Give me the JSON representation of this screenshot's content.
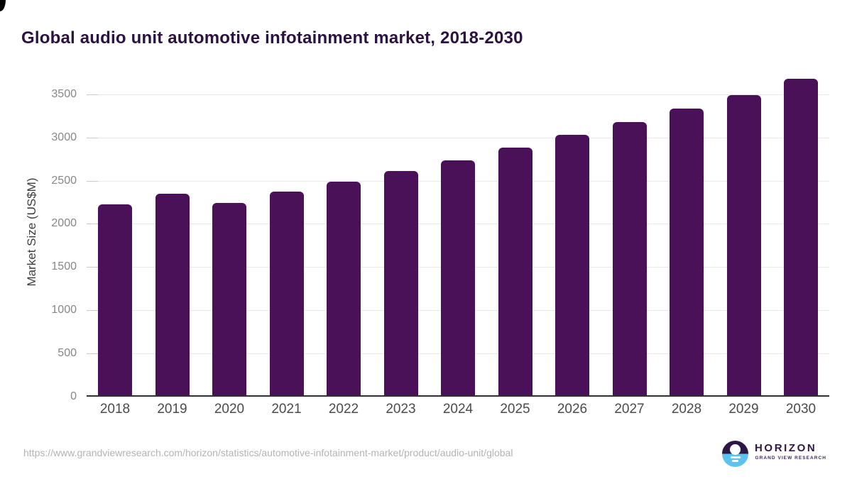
{
  "header": {
    "title": "Global audio unit automotive infotainment market, 2018-2030"
  },
  "chart_data": {
    "type": "bar",
    "title": "Global audio unit automotive infotainment market, 2018-2030",
    "categories": [
      "2018",
      "2019",
      "2020",
      "2021",
      "2022",
      "2023",
      "2024",
      "2025",
      "2026",
      "2027",
      "2028",
      "2029",
      "2030"
    ],
    "values": [
      2225,
      2350,
      2240,
      2375,
      2490,
      2610,
      2730,
      2880,
      3030,
      3175,
      3335,
      3490,
      3675
    ],
    "xlabel": "",
    "ylabel": "Market Size (US$M)",
    "ylim": [
      0,
      3500
    ],
    "yticks": [
      0,
      500,
      1000,
      1500,
      2000,
      2500,
      3000,
      3500
    ],
    "grid": true,
    "legend_position": "none",
    "bar_color": "#4a1158"
  },
  "footer": {
    "source_url": "https://www.grandviewresearch.com/horizon/statistics/automotive-infotainment-market/product/audio-unit/global",
    "logo": {
      "name": "HORIZON",
      "subtitle": "GRAND VIEW RESEARCH"
    }
  },
  "colors": {
    "title_purple": "#2b1240",
    "bar_purple": "#4a1158",
    "logo_purple": "#2e1745",
    "logo_blue": "#5ec3ec",
    "axis_line": "#303030"
  }
}
